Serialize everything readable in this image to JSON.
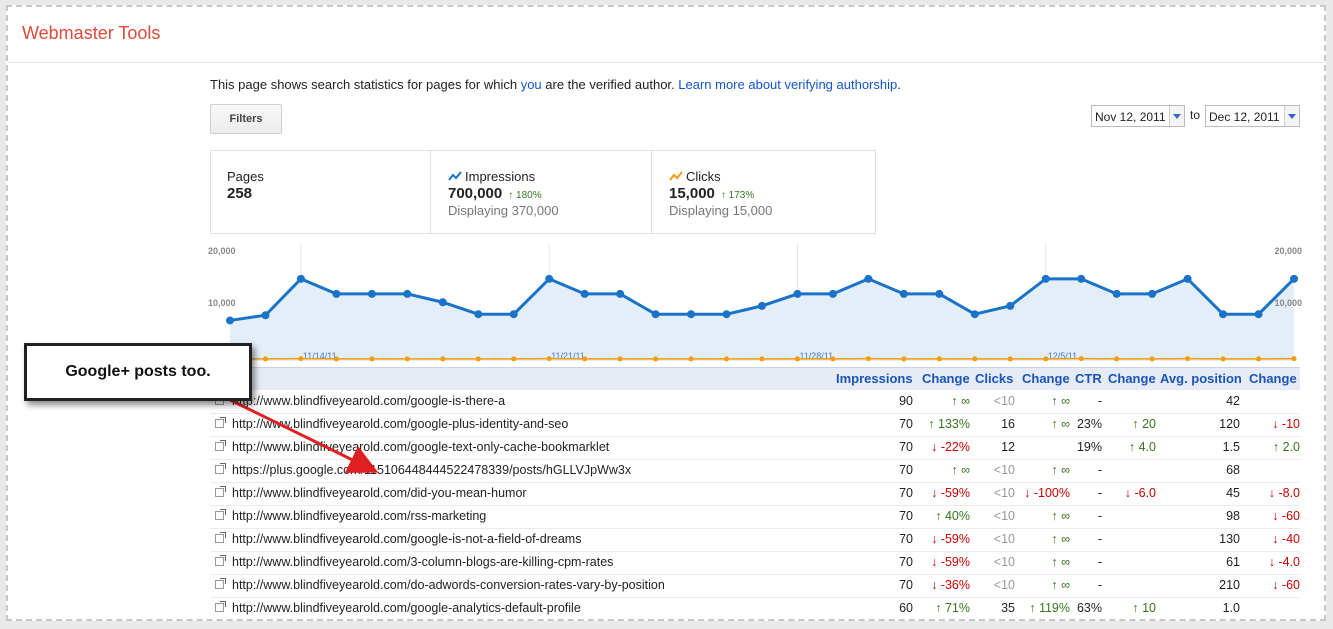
{
  "app": {
    "title": "Webmaster Tools"
  },
  "intro": {
    "text_before": "This page shows search statistics for pages for which ",
    "you_link": "you",
    "text_middle": " are the verified author. ",
    "learn_more_link": "Learn more about verifying authorship",
    "text_after": "."
  },
  "filters_label": "Filters",
  "date_range": {
    "start": "Nov 12, 2011",
    "separator": "to",
    "end": "Dec 12, 2011"
  },
  "stats": {
    "pages": {
      "label": "Pages",
      "value": "258"
    },
    "impressions": {
      "label": "Impressions",
      "value": "700,000",
      "change": "180%",
      "displaying": "Displaying 370,000",
      "icon": "line-chart-blue-icon"
    },
    "clicks": {
      "label": "Clicks",
      "value": "15,000",
      "change": "173%",
      "displaying": "Displaying 15,000",
      "icon": "line-chart-orange-icon"
    }
  },
  "chart_data": {
    "type": "line",
    "y_tick_labels": [
      "20,000",
      "10,000"
    ],
    "ylim": [
      0,
      20000
    ],
    "x_tick_labels": [
      "11/14/11",
      "11/21/11",
      "11/28/11",
      "12/5/11"
    ],
    "series": [
      {
        "color": "#1a73c8",
        "values": [
          7800,
          8800,
          15800,
          12900,
          12900,
          12900,
          11300,
          9000,
          9000,
          15800,
          12900,
          12900,
          9000,
          9000,
          9000,
          10600,
          12900,
          12900,
          15800,
          12900,
          12900,
          9000,
          10600,
          15800,
          15800,
          12900,
          12900,
          15800,
          9000,
          9000,
          15800
        ]
      },
      {
        "color": "#f39c12",
        "values": [
          400,
          400,
          450,
          400,
          420,
          420,
          400,
          400,
          420,
          450,
          420,
          420,
          400,
          400,
          400,
          400,
          420,
          420,
          450,
          400,
          420,
          400,
          400,
          420,
          450,
          420,
          420,
          450,
          400,
          400,
          450
        ]
      }
    ],
    "grid": false
  },
  "callout": {
    "text": "Google+ posts too."
  },
  "table": {
    "headers": {
      "impressions": "Impressions",
      "change1": "Change",
      "clicks": "Clicks",
      "change2": "Change",
      "ctr": "CTR",
      "change3": "Change",
      "avg_position": "Avg. position",
      "change4": "Change"
    },
    "rows": [
      {
        "url": "http://www.blindfiveyearold.com/google-is-there-a",
        "impressions": "90",
        "imp_change": "∞",
        "imp_dir": "up",
        "clicks": "<10",
        "clk_change": "∞",
        "clk_dir": "up",
        "ctr": "-",
        "ctr_change": "",
        "ctr_dir": "",
        "avg_pos": "42",
        "pos_change": "",
        "pos_dir": ""
      },
      {
        "url": "http://www.blindfiveyearold.com/google-plus-identity-and-seo",
        "impressions": "70",
        "imp_change": "133%",
        "imp_dir": "up",
        "clicks": "16",
        "clk_change": "∞",
        "clk_dir": "up",
        "ctr": "23%",
        "ctr_change": "20",
        "ctr_dir": "up",
        "avg_pos": "120",
        "pos_change": "-10",
        "pos_dir": "down"
      },
      {
        "url": "http://www.blindfiveyearold.com/google-text-only-cache-bookmarklet",
        "impressions": "70",
        "imp_change": "-22%",
        "imp_dir": "down",
        "clicks": "12",
        "clk_change": "",
        "clk_dir": "",
        "ctr": "19%",
        "ctr_change": "4.0",
        "ctr_dir": "up",
        "avg_pos": "1.5",
        "pos_change": "2.0",
        "pos_dir": "up"
      },
      {
        "url": "https://plus.google.com/115106448444522478339/posts/hGLLVJpWw3x",
        "impressions": "70",
        "imp_change": "∞",
        "imp_dir": "up",
        "clicks": "<10",
        "clk_change": "∞",
        "clk_dir": "up",
        "ctr": "-",
        "ctr_change": "",
        "ctr_dir": "",
        "avg_pos": "68",
        "pos_change": "",
        "pos_dir": ""
      },
      {
        "url": "http://www.blindfiveyearold.com/did-you-mean-humor",
        "impressions": "70",
        "imp_change": "-59%",
        "imp_dir": "down",
        "clicks": "<10",
        "clk_change": "-100%",
        "clk_dir": "down",
        "ctr": "-",
        "ctr_change": "-6.0",
        "ctr_dir": "down",
        "avg_pos": "45",
        "pos_change": "-8.0",
        "pos_dir": "down"
      },
      {
        "url": "http://www.blindfiveyearold.com/rss-marketing",
        "impressions": "70",
        "imp_change": "40%",
        "imp_dir": "up",
        "clicks": "<10",
        "clk_change": "∞",
        "clk_dir": "up",
        "ctr": "-",
        "ctr_change": "",
        "ctr_dir": "",
        "avg_pos": "98",
        "pos_change": "-60",
        "pos_dir": "down"
      },
      {
        "url": "http://www.blindfiveyearold.com/google-is-not-a-field-of-dreams",
        "impressions": "70",
        "imp_change": "-59%",
        "imp_dir": "down",
        "clicks": "<10",
        "clk_change": "∞",
        "clk_dir": "up",
        "ctr": "-",
        "ctr_change": "",
        "ctr_dir": "",
        "avg_pos": "130",
        "pos_change": "-40",
        "pos_dir": "down"
      },
      {
        "url": "http://www.blindfiveyearold.com/3-column-blogs-are-killing-cpm-rates",
        "impressions": "70",
        "imp_change": "-59%",
        "imp_dir": "down",
        "clicks": "<10",
        "clk_change": "∞",
        "clk_dir": "up",
        "ctr": "-",
        "ctr_change": "",
        "ctr_dir": "",
        "avg_pos": "61",
        "pos_change": "-4.0",
        "pos_dir": "down"
      },
      {
        "url": "http://www.blindfiveyearold.com/do-adwords-conversion-rates-vary-by-position",
        "impressions": "70",
        "imp_change": "-36%",
        "imp_dir": "down",
        "clicks": "<10",
        "clk_change": "∞",
        "clk_dir": "up",
        "ctr": "-",
        "ctr_change": "",
        "ctr_dir": "",
        "avg_pos": "210",
        "pos_change": "-60",
        "pos_dir": "down"
      },
      {
        "url": "http://www.blindfiveyearold.com/google-analytics-default-profile",
        "impressions": "60",
        "imp_change": "71%",
        "imp_dir": "up",
        "clicks": "35",
        "clk_change": "119%",
        "clk_dir": "up",
        "ctr": "63%",
        "ctr_change": "10",
        "ctr_dir": "up",
        "avg_pos": "1.0",
        "pos_change": "",
        "pos_dir": ""
      }
    ]
  },
  "colors": {
    "accent_red": "#dd4b39",
    "link_blue": "#1155cc",
    "up_green": "#38761d",
    "down_red": "#cc0000"
  }
}
